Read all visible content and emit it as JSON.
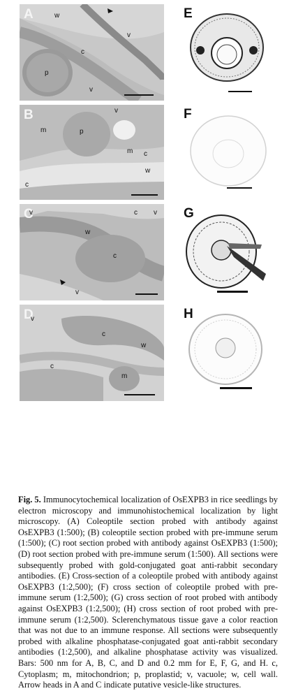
{
  "panels": {
    "A": {
      "label": "A",
      "annotations": [
        "w",
        "v",
        "c",
        "p",
        "v"
      ]
    },
    "B": {
      "label": "B",
      "annotations": [
        "v",
        "m",
        "p",
        "m",
        "c",
        "w",
        "c"
      ]
    },
    "C": {
      "label": "C",
      "annotations": [
        "v",
        "c",
        "v",
        "w",
        "c",
        "v"
      ]
    },
    "D": {
      "label": "D",
      "annotations": [
        "v",
        "c",
        "w",
        "c",
        "m"
      ]
    },
    "E": {
      "label": "E"
    },
    "F": {
      "label": "F"
    },
    "G": {
      "label": "G"
    },
    "H": {
      "label": "H"
    }
  },
  "caption": {
    "fig_label": "Fig. 5.",
    "text": "Immunocytochemical localization of OsEXPB3 in rice seedlings by electron microscopy and immunohistochemical localization by light microscopy. (A) Coleoptile section probed with antibody against OsEXPB3 (1:500); (B) coleoptile section probed with pre-immune serum (1:500); (C) root section probed with antibody against OsEXPB3 (1:500); (D) root section probed with pre-immune serum (1:500). All sections were subsequently probed with gold-conjugated goat anti-rabbit secondary antibodies. (E) Cross-section of a coleoptile probed with antibody against OsEXPB3 (1:2,500); (F) cross section of coleoptile probed with pre-immune serum (1:2,500); (G) cross section of root probed with antibody against OsEXPB3 (1:2,500); (H) cross section of root probed with pre-immune serum (1:2,500). Sclerenchymatous tissue gave a color reaction that was not due to an immune response. All sections were subsequently probed with alkaline phosphatase-conjugated goat anti-rabbit secondary antibodies (1:2,500), and alkaline phosphatase activity was visualized. Bars: 500 nm for A, B, C, and D and 0.2 mm for E, F, G, and H. c, Cytoplasm; m, mitochondrion; p, proplastid; v, vacuole; w, cell wall. Arrow heads in A and C indicate putative vesicle-like structures."
  }
}
